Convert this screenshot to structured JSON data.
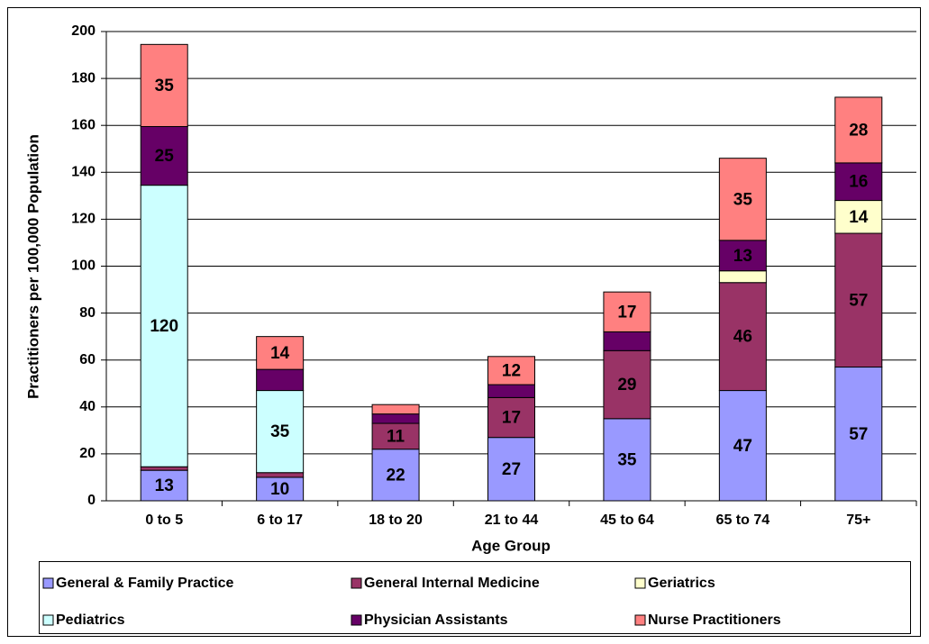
{
  "chart_data": {
    "type": "stacked_bar",
    "x_label": "Age Group",
    "y_label": "Practitioners per 100,000 Population",
    "categories": [
      "0 to 5",
      "6 to 17",
      "18 to 20",
      "21 to 44",
      "45 to 64",
      "65 to 74",
      "75+"
    ],
    "ylim": [
      0,
      200
    ],
    "yticks": [
      0,
      20,
      40,
      60,
      80,
      100,
      120,
      140,
      160,
      180,
      200
    ],
    "grid": true,
    "legend": "bottom",
    "series": [
      {
        "name": "General & Family Practice",
        "color": "#9999ff",
        "values": [
          13,
          10,
          22,
          27,
          35,
          47,
          57
        ],
        "value_labels": [
          "13",
          "10",
          "22",
          "27",
          "35",
          "47",
          "57"
        ]
      },
      {
        "name": "General Internal Medicine",
        "color": "#993366",
        "values": [
          1.5,
          2,
          11,
          17,
          29,
          46,
          57
        ],
        "value_labels": [
          null,
          null,
          "11",
          "17",
          "29",
          "46",
          "57"
        ]
      },
      {
        "name": "Geriatrics",
        "color": "#ffffcc",
        "values": [
          0,
          0,
          0,
          0,
          0,
          5,
          14
        ],
        "value_labels": [
          null,
          null,
          null,
          null,
          null,
          null,
          "14"
        ]
      },
      {
        "name": "Pediatrics",
        "color": "#ccffff",
        "values": [
          120,
          35,
          0,
          0,
          0,
          0,
          0
        ],
        "value_labels": [
          "120",
          "35",
          null,
          null,
          null,
          null,
          null
        ]
      },
      {
        "name": "Physician Assistants",
        "color": "#660066",
        "values": [
          25,
          9,
          4,
          5.5,
          8,
          13,
          16
        ],
        "value_labels": [
          "25",
          null,
          null,
          null,
          null,
          "13",
          "16"
        ]
      },
      {
        "name": "Nurse Practitioners",
        "color": "#ff8080",
        "values": [
          35,
          14,
          4,
          12,
          17,
          35,
          28
        ],
        "value_labels": [
          "35",
          "14",
          null,
          "12",
          "17",
          "35",
          "28"
        ]
      }
    ]
  }
}
